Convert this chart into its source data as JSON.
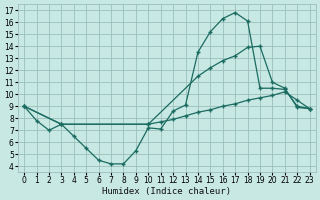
{
  "xlabel": "Humidex (Indice chaleur)",
  "bg_color": "#c8e8e4",
  "grid_color": "#9bbfbb",
  "line_color": "#1a6b60",
  "xlim": [
    -0.5,
    23.5
  ],
  "ylim": [
    3.5,
    17.5
  ],
  "xticks": [
    0,
    1,
    2,
    3,
    4,
    5,
    6,
    7,
    8,
    9,
    10,
    11,
    12,
    13,
    14,
    15,
    16,
    17,
    18,
    19,
    20,
    21,
    22,
    23
  ],
  "yticks": [
    4,
    5,
    6,
    7,
    8,
    9,
    10,
    11,
    12,
    13,
    14,
    15,
    16,
    17
  ],
  "line1_x": [
    0,
    1,
    2,
    3,
    4,
    5,
    6,
    7,
    8,
    9,
    10,
    11,
    12,
    13,
    14,
    15,
    16,
    17,
    18,
    19,
    20,
    21,
    22,
    23
  ],
  "line1_y": [
    9.0,
    7.8,
    7.0,
    7.5,
    6.5,
    5.5,
    4.5,
    4.2,
    4.2,
    5.3,
    7.2,
    7.1,
    8.6,
    9.1,
    13.5,
    15.2,
    16.3,
    16.8,
    16.1,
    10.5,
    10.5,
    10.4,
    9.0,
    8.8
  ],
  "line2_x": [
    0,
    3,
    10,
    14,
    15,
    16,
    17,
    18,
    19,
    20,
    21,
    22,
    23
  ],
  "line2_y": [
    9.0,
    7.5,
    7.5,
    11.5,
    12.2,
    12.8,
    13.2,
    13.9,
    14.0,
    11.0,
    10.5,
    8.9,
    8.8
  ],
  "line3_x": [
    0,
    3,
    10,
    11,
    12,
    13,
    14,
    15,
    16,
    17,
    18,
    19,
    20,
    21,
    22,
    23
  ],
  "line3_y": [
    9.0,
    7.5,
    7.5,
    7.7,
    7.9,
    8.2,
    8.5,
    8.7,
    9.0,
    9.2,
    9.5,
    9.7,
    9.9,
    10.2,
    9.5,
    8.8
  ]
}
